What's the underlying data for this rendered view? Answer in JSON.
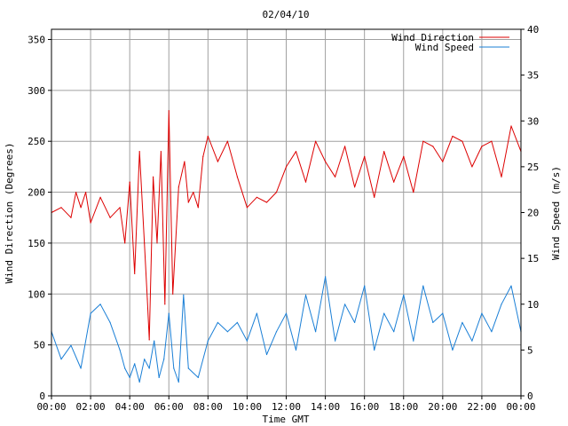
{
  "chart_data": {
    "type": "line",
    "title": "02/04/10",
    "xlabel": "Time GMT",
    "ylabel_left": "Wind Direction (Degrees)",
    "ylabel_right": "Wind Speed (m/s)",
    "x_ticks": [
      "00:00",
      "02:00",
      "04:00",
      "06:00",
      "08:00",
      "10:00",
      "12:00",
      "14:00",
      "16:00",
      "18:00",
      "20:00",
      "22:00",
      "00:00"
    ],
    "x_range_hours": [
      0,
      24
    ],
    "y_left_ticks": [
      "0",
      "50",
      "100",
      "150",
      "200",
      "250",
      "300",
      "350"
    ],
    "y_left_range": [
      0,
      360
    ],
    "y_right_ticks": [
      "0",
      "5",
      "10",
      "15",
      "20",
      "25",
      "30",
      "35",
      "40"
    ],
    "y_right_range": [
      0,
      40
    ],
    "grid": true,
    "legend_placement": "top-right",
    "colors": {
      "direction": "#dd0000",
      "speed": "#1a7fd6"
    },
    "series": [
      {
        "name": "Wind Direction",
        "axis": "left",
        "color": "#dd0000",
        "x_hours": [
          0,
          0.5,
          1,
          1.25,
          1.5,
          1.75,
          2,
          2.5,
          3,
          3.5,
          3.75,
          4,
          4.25,
          4.5,
          4.75,
          4.9,
          5,
          5.2,
          5.4,
          5.6,
          5.8,
          6,
          6.2,
          6.5,
          6.8,
          7,
          7.25,
          7.5,
          7.75,
          8,
          8.5,
          9,
          9.5,
          10,
          10.5,
          11,
          11.5,
          12,
          12.5,
          13,
          13.5,
          14,
          14.5,
          15,
          15.5,
          16,
          16.5,
          17,
          17.5,
          18,
          18.5,
          19,
          19.5,
          20,
          20.5,
          21,
          21.5,
          22,
          22.5,
          23,
          23.5,
          24
        ],
        "values": [
          180,
          185,
          175,
          200,
          185,
          200,
          170,
          195,
          175,
          185,
          150,
          210,
          120,
          240,
          150,
          95,
          55,
          215,
          150,
          240,
          90,
          280,
          100,
          205,
          230,
          190,
          200,
          185,
          235,
          255,
          230,
          250,
          215,
          185,
          195,
          190,
          200,
          225,
          240,
          210,
          250,
          230,
          215,
          245,
          205,
          235,
          195,
          240,
          210,
          235,
          200,
          250,
          245,
          230,
          255,
          250,
          225,
          245,
          250,
          215,
          265,
          240
        ]
      },
      {
        "name": "Wind Speed",
        "axis": "right",
        "color": "#1a7fd6",
        "x_hours": [
          0,
          0.5,
          1,
          1.5,
          2,
          2.5,
          3,
          3.5,
          3.75,
          4,
          4.25,
          4.5,
          4.75,
          5,
          5.25,
          5.5,
          5.75,
          6,
          6.25,
          6.5,
          6.75,
          7,
          7.5,
          8,
          8.5,
          9,
          9.5,
          10,
          10.5,
          11,
          11.5,
          12,
          12.5,
          13,
          13.5,
          14,
          14.5,
          15,
          15.5,
          16,
          16.5,
          17,
          17.5,
          18,
          18.5,
          19,
          19.5,
          20,
          20.5,
          21,
          21.5,
          22,
          22.5,
          23,
          23.5,
          24
        ],
        "values": [
          7,
          4,
          5.5,
          3,
          9,
          10,
          8,
          5,
          3,
          2,
          3.5,
          1.5,
          4,
          3,
          6,
          2,
          4,
          9,
          3,
          1.5,
          11,
          3,
          2,
          6,
          8,
          7,
          8,
          6,
          9,
          4.5,
          7,
          9,
          5,
          11,
          7,
          13,
          6,
          10,
          8,
          12,
          5,
          9,
          7,
          11,
          6,
          12,
          8,
          9,
          5,
          8,
          6,
          9,
          7,
          10,
          12,
          7
        ]
      }
    ]
  }
}
